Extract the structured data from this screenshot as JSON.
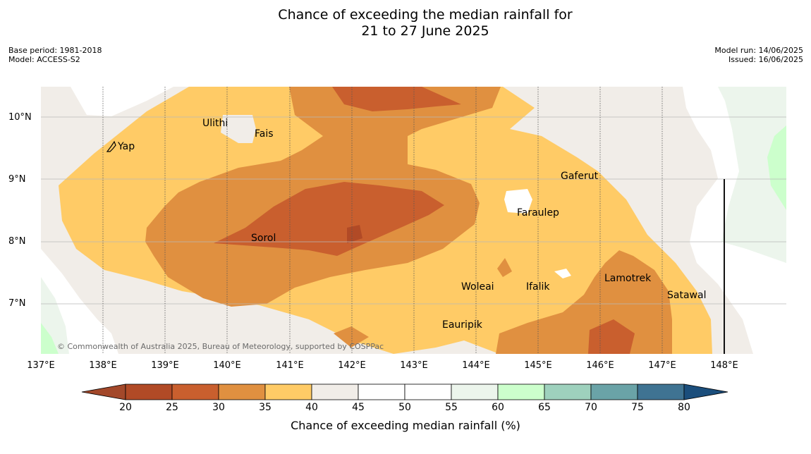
{
  "title": {
    "line1": "Chance of exceeding the median rainfall for",
    "line2": "21 to 27 June 2025"
  },
  "meta_left": {
    "base_period": "Base period: 1981-2018",
    "model": "Model: ACCESS-S2"
  },
  "meta_right": {
    "model_run": "Model run: 14/06/2025",
    "issued": "Issued: 16/06/2025"
  },
  "map": {
    "lat_labels": [
      "10°N",
      "9°N",
      "8°N",
      "7°N"
    ],
    "lon_labels": [
      "137°E",
      "138°E",
      "139°E",
      "140°E",
      "141°E",
      "142°E",
      "143°E",
      "144°E",
      "145°E",
      "146°E",
      "147°E",
      "148°E"
    ],
    "places": [
      {
        "name": "Yap",
        "lon": 138.23,
        "lat": 9.5
      },
      {
        "name": "Ulithi",
        "lon": 139.7,
        "lat": 9.9
      },
      {
        "name": "Fais",
        "lon": 140.5,
        "lat": 9.7
      },
      {
        "name": "Gaferut",
        "lon": 145.35,
        "lat": 9.1
      },
      {
        "name": "Faraulep",
        "lon": 144.65,
        "lat": 8.5
      },
      {
        "name": "Sorol",
        "lon": 140.35,
        "lat": 8.05
      },
      {
        "name": "Lamotrek",
        "lon": 146.05,
        "lat": 7.4
      },
      {
        "name": "Woleai",
        "lon": 143.9,
        "lat": 7.25
      },
      {
        "name": "Ifalik",
        "lon": 144.45,
        "lat": 7.25
      },
      {
        "name": "Satawal",
        "lon": 147.05,
        "lat": 7.1
      },
      {
        "name": "Eauripik",
        "lon": 143.1,
        "lat": 6.65
      }
    ],
    "copyright": "© Commonwealth of Australia 2025, Bureau of Meteorology, supported by COSPPac"
  },
  "colorbar": {
    "ticks": [
      "20",
      "25",
      "30",
      "35",
      "40",
      "45",
      "50",
      "55",
      "60",
      "65",
      "70",
      "75",
      "80"
    ],
    "colors": [
      "#a3482a",
      "#b14a26",
      "#c95f2e",
      "#e09040",
      "#ffcb66",
      "#f1ede8",
      "#ffffff",
      "#ffffff",
      "#ecf5ec",
      "#ccffcc",
      "#9ed1bd",
      "#6aa3a7",
      "#3f7392",
      "#1b4e7c"
    ],
    "label": "Chance of exceeding median rainfall (%)"
  }
}
